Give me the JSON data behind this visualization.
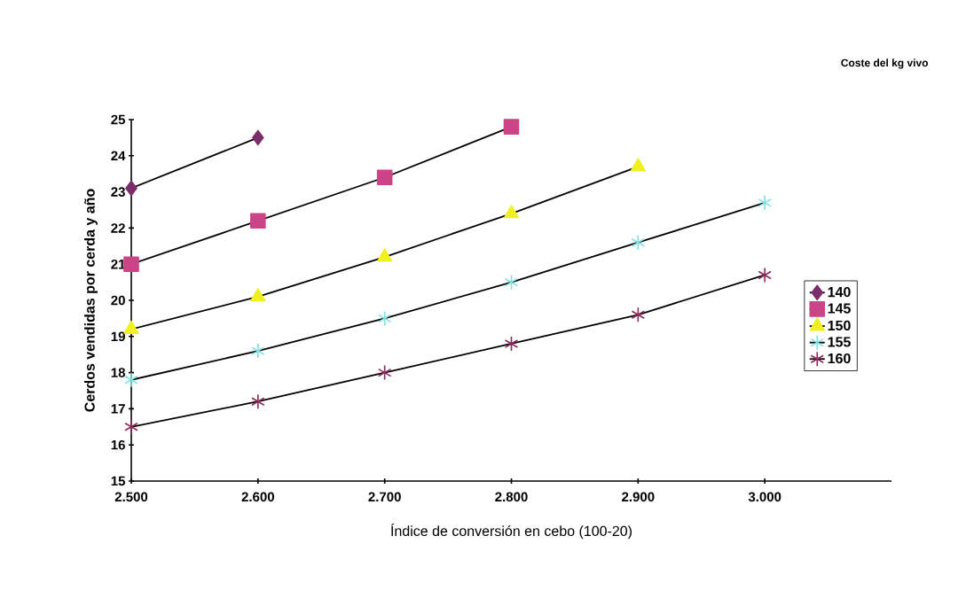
{
  "chart_data": {
    "type": "line",
    "xlabel": "Índice de conversión en cebo (100-20)",
    "ylabel": "Cerdos vendidas por cerda y año",
    "legend_title": "Coste del kg vivo",
    "x": [
      2.5,
      2.6,
      2.7,
      2.8,
      2.9,
      3.0
    ],
    "series": [
      {
        "name": "140",
        "color": "#7a2e6a",
        "marker": "diamond",
        "values": [
          23.1,
          24.5,
          null,
          null,
          null,
          null
        ]
      },
      {
        "name": "145",
        "color": "#cc4488",
        "marker": "square",
        "values": [
          21.0,
          22.2,
          23.4,
          24.8,
          null,
          null
        ]
      },
      {
        "name": "150",
        "color": "#f0f020",
        "marker": "triangle",
        "values": [
          19.2,
          20.1,
          21.2,
          22.4,
          23.7,
          null
        ]
      },
      {
        "name": "155",
        "color": "#80e0e0",
        "marker": "cross",
        "values": [
          17.8,
          18.6,
          19.5,
          20.5,
          21.6,
          22.7
        ]
      },
      {
        "name": "160",
        "color": "#8b2a5a",
        "marker": "cross",
        "values": [
          16.5,
          17.2,
          18.0,
          18.8,
          19.6,
          20.7
        ]
      }
    ],
    "xlim": [
      2.5,
      3.1
    ],
    "xticks": [
      {
        "value": 2.5,
        "label": "2.500"
      },
      {
        "value": 2.6,
        "label": "2.600"
      },
      {
        "value": 2.7,
        "label": "2.700"
      },
      {
        "value": 2.8,
        "label": "2.800"
      },
      {
        "value": 2.9,
        "label": "2.900"
      },
      {
        "value": 3.0,
        "label": "3.000"
      }
    ],
    "ylim": [
      15,
      25
    ],
    "yticks": [
      15,
      16,
      17,
      18,
      19,
      20,
      21,
      22,
      23,
      24,
      25
    ],
    "grid": false,
    "legend": "right"
  }
}
